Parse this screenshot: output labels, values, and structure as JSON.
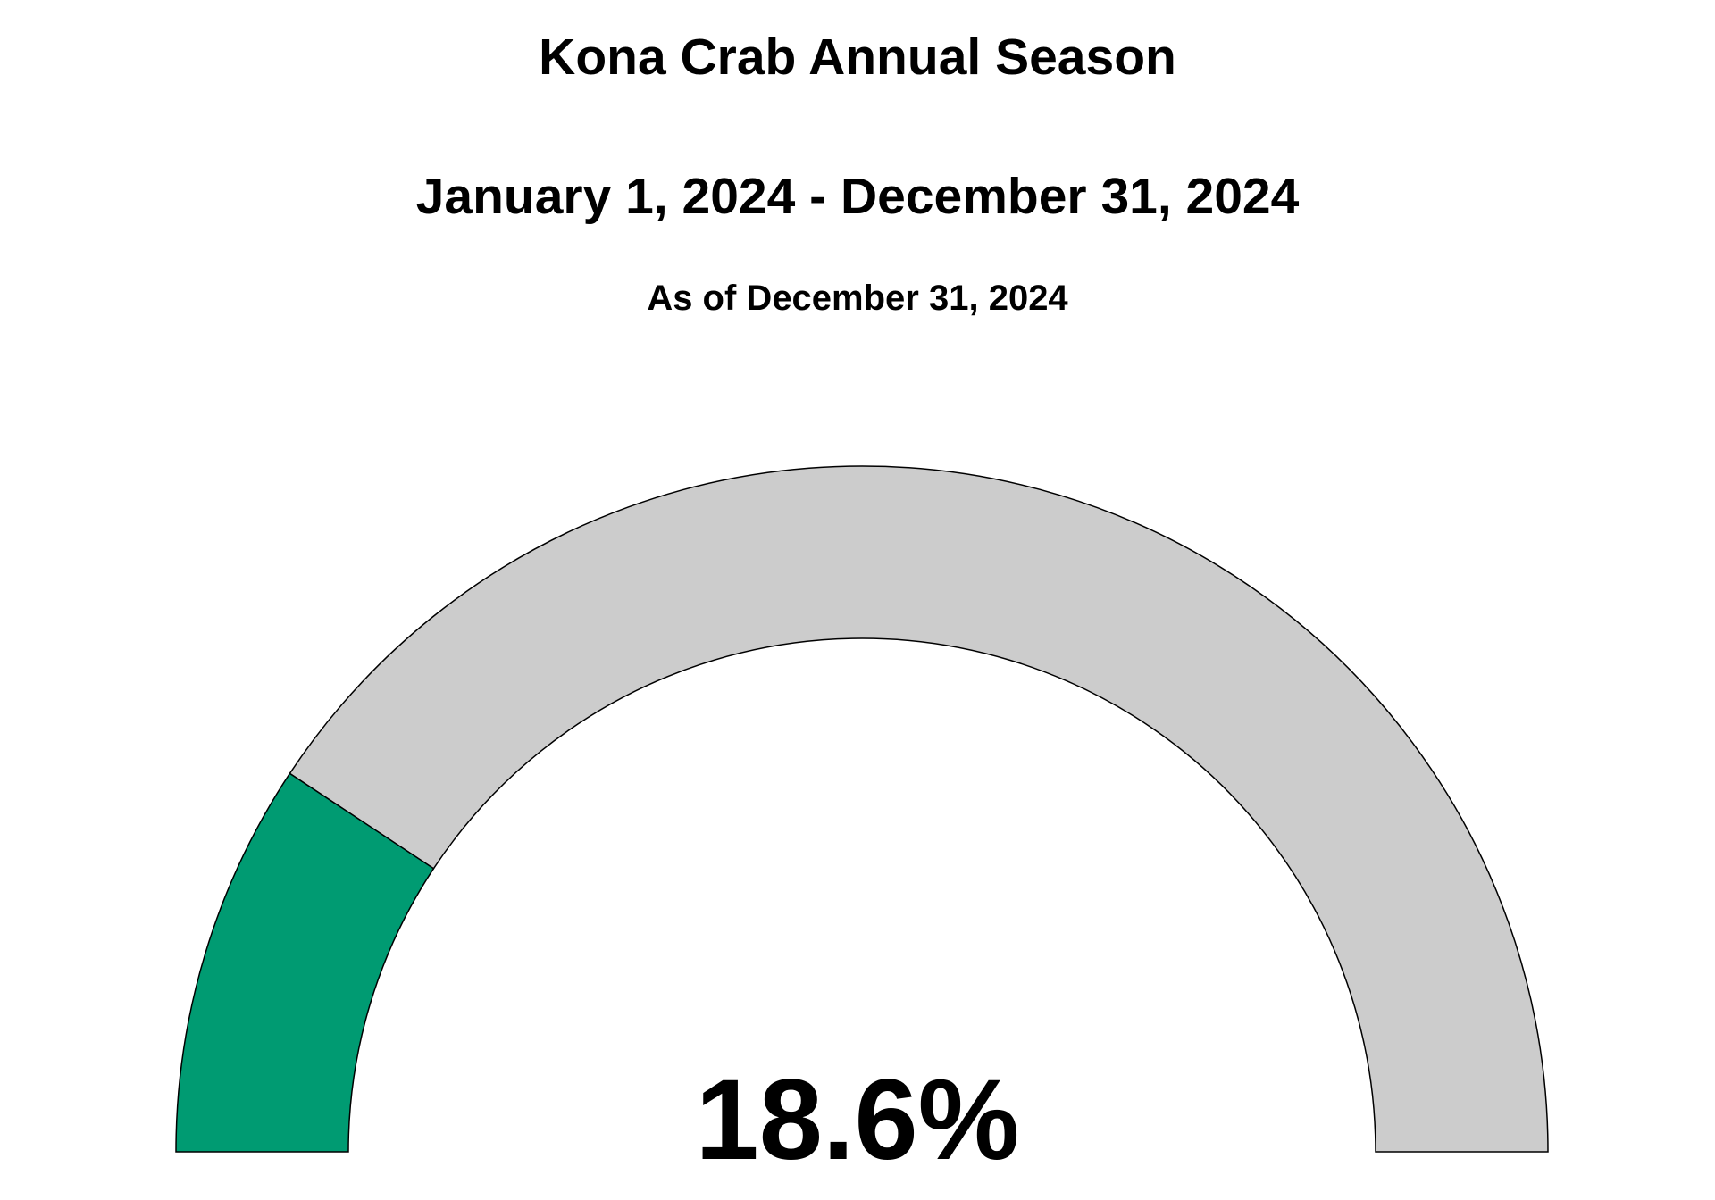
{
  "chart_data": {
    "type": "gauge",
    "title": "Kona Crab Annual Season",
    "subtitle": "January 1, 2024 - December 31, 2024",
    "as_of": "As of December 31, 2024",
    "value": 18.6,
    "value_label": "18.6%",
    "range": [
      0,
      100
    ],
    "colors": {
      "filled": "#009B72",
      "remaining": "#CCCCCC",
      "outline": "#000000"
    }
  }
}
